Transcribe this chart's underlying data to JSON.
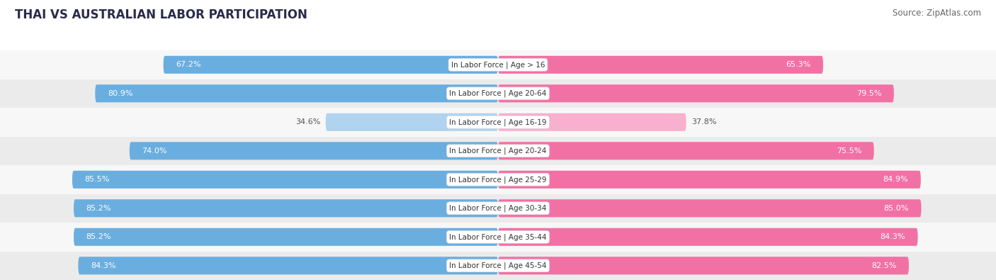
{
  "title": "THAI VS AUSTRALIAN LABOR PARTICIPATION",
  "source": "Source: ZipAtlas.com",
  "categories": [
    "In Labor Force | Age > 16",
    "In Labor Force | Age 20-64",
    "In Labor Force | Age 16-19",
    "In Labor Force | Age 20-24",
    "In Labor Force | Age 25-29",
    "In Labor Force | Age 30-34",
    "In Labor Force | Age 35-44",
    "In Labor Force | Age 45-54"
  ],
  "thai_values": [
    67.2,
    80.9,
    34.6,
    74.0,
    85.5,
    85.2,
    85.2,
    84.3
  ],
  "australian_values": [
    65.3,
    79.5,
    37.8,
    75.5,
    84.9,
    85.0,
    84.3,
    82.5
  ],
  "thai_color": "#6aaee0",
  "thai_color_light": "#b0d4ef",
  "australian_color": "#f271a5",
  "australian_color_light": "#f9b0ce",
  "bar_height": 0.62,
  "bg_color": "#ffffff",
  "chart_bg": "#f0f0f0",
  "row_bg_odd": "#f7f7f7",
  "row_bg_even": "#ebebeb",
  "label_color_dark": "#555555",
  "label_color_white": "#ffffff",
  "max_val": 100.0,
  "title_fontsize": 12,
  "source_fontsize": 8.5,
  "value_fontsize": 8,
  "cat_fontsize": 7.5,
  "legend_fontsize": 9,
  "axis_label_fontsize": 8
}
